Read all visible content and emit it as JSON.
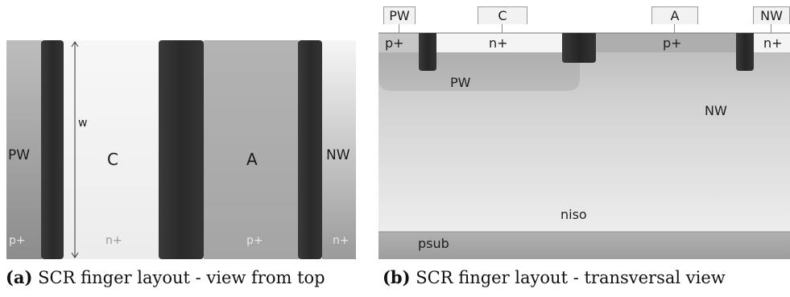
{
  "fig_a": {
    "caption_letter": "(a)",
    "caption_text": "SCR finger layout - view from top",
    "region_pw": "PW",
    "region_c": "C",
    "region_a": "A",
    "region_nw": "NW",
    "width_label": "w",
    "doping_p_left": "p+",
    "doping_n_c": "n+",
    "doping_p_a": "p+",
    "doping_n_right": "n+"
  },
  "fig_b": {
    "caption_letter": "(b)",
    "caption_text": "SCR finger layout - transversal view",
    "terminals": [
      "PW",
      "C",
      "A",
      "NW"
    ],
    "diff_p_left": "p+",
    "diff_n_c": "n+",
    "diff_p_a": "p+",
    "diff_n_right": "n+",
    "well_pw": "PW",
    "well_nw": "NW",
    "layer_niso": "niso",
    "layer_psub": "psub"
  },
  "colors": {
    "trench": "#2e2e2e",
    "n_plus": "#f5f5f5",
    "p_plus": "#ababab"
  }
}
